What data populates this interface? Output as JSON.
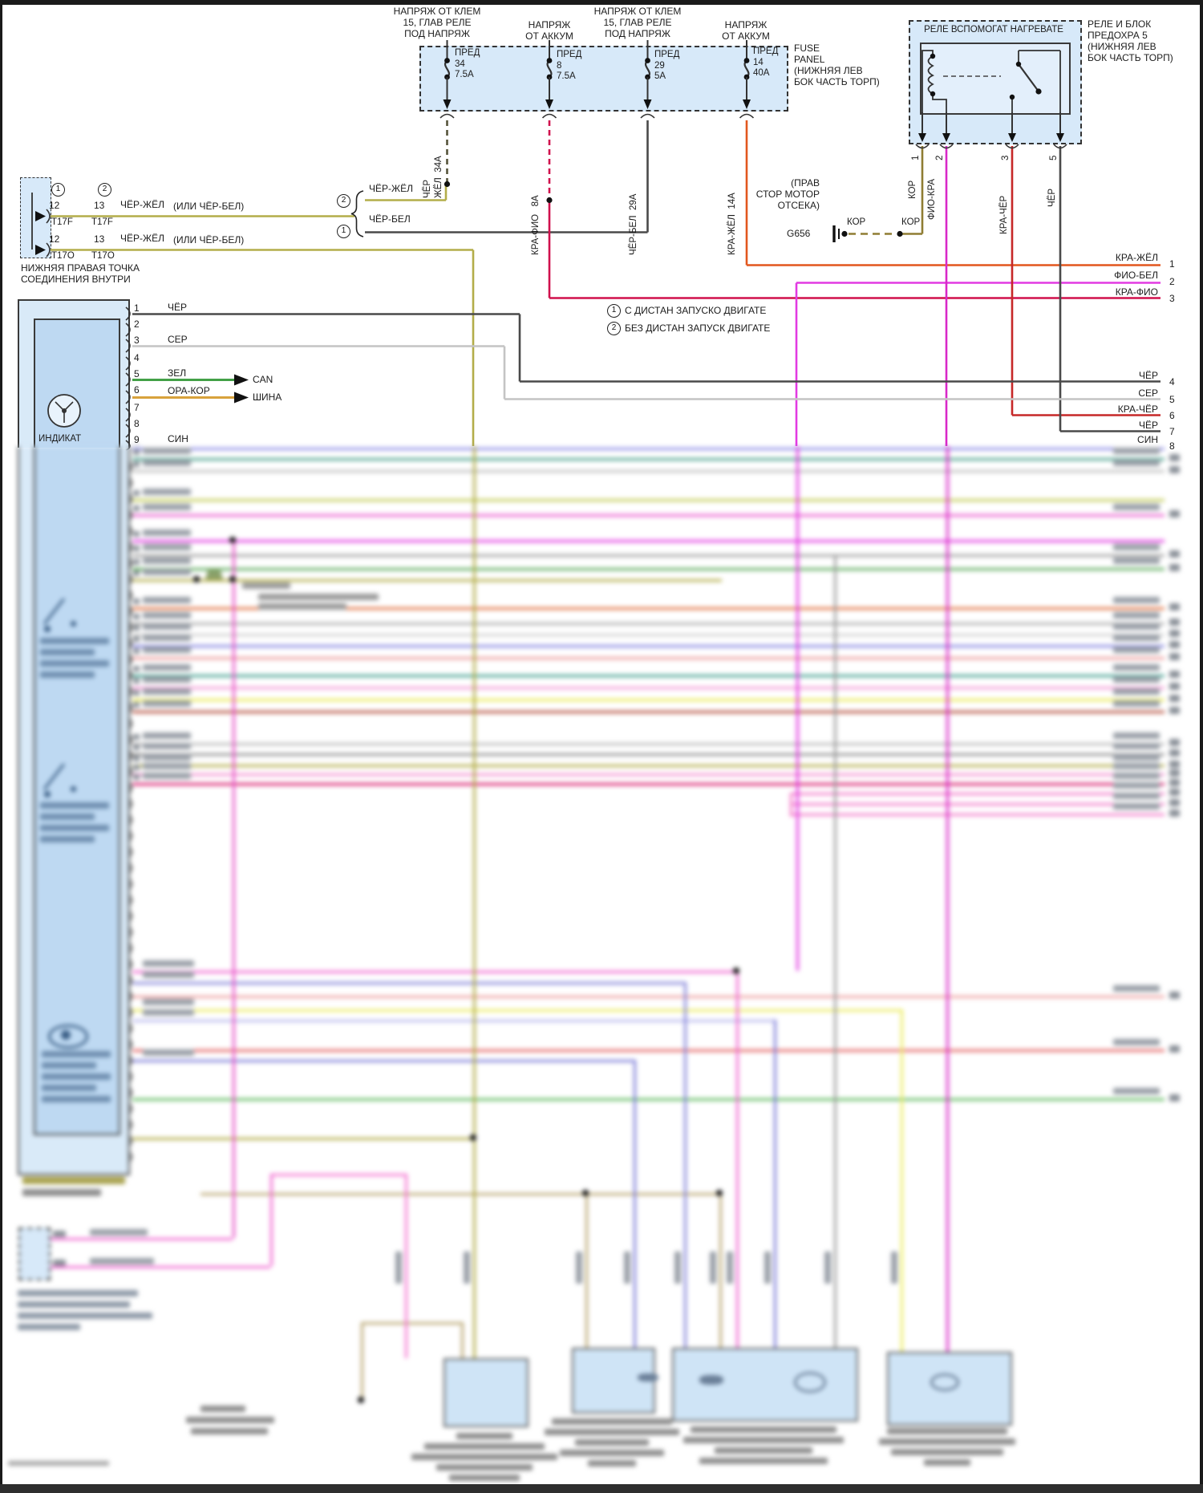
{
  "headers": {
    "h1": "НАПРЯЖ ОТ КЛЕМ\n15, ГЛАВ РЕЛЕ\nПОД НАПРЯЖ",
    "h2": "НАПРЯЖ\nОТ АККУМ",
    "h3": "НАПРЯЖ ОТ КЛЕМ\n15, ГЛАВ РЕЛЕ\nПОД НАПРЯЖ",
    "h4": "НАПРЯЖ\nОТ АККУМ"
  },
  "fuse_panel": {
    "label": "FUSE\nPANEL\n(НИЖНЯЯ ЛЕВ\nБОК ЧАСТЬ ТОРП)",
    "fuses": [
      {
        "text": "ПРЕД\n34\n7.5A"
      },
      {
        "text": "ПРЕД\n8\n7.5A"
      },
      {
        "text": "ПРЕД\n29\n5A"
      },
      {
        "text": "ПРЕД\n14\n40A"
      }
    ]
  },
  "relay": {
    "title": "РЕЛЕ ВСПОМОГАТ НАГРЕВАТЕ",
    "side_label": "РЕЛЕ И БЛОК\nПРЕДОХРА 5\n(НИЖНЯЯ ЛЕВ\nБОК ЧАСТЬ ТОРП)",
    "pins": [
      "1",
      "2",
      "3",
      "5"
    ],
    "pin_wires": [
      "КОР",
      "ФИО-КРА",
      "КРА-ЧЁР",
      "ЧЁР"
    ]
  },
  "drops": {
    "f34": "ЧЁР\nЖЁЛ  34А",
    "f8": "КРА-ФИО   8А",
    "f29": "ЧЁР-БЕЛ  29А",
    "f14": "КРА-ЖЁЛ  14А"
  },
  "branch": {
    "brace": "{",
    "opt2_num": "2",
    "opt2_label": "ЧЁР-ЖЁЛ",
    "opt1_num": "1",
    "opt1_label": "ЧЁР-БЕЛ"
  },
  "connector": {
    "rows": [
      {
        "c1": "1",
        "c2": "2",
        "p1": "12",
        "p2": "13",
        "wire": "ЧЁР-ЖЁЛ",
        "alt": "(ИЛИ ЧЁР-БЕЛ)",
        "t1": "T17F",
        "t2": "T17F"
      },
      {
        "p1": "12",
        "p2": "13",
        "wire": "ЧЁР-ЖЁЛ",
        "alt": "(ИЛИ ЧЁР-БЕЛ)",
        "t1": "T17O",
        "t2": "T17O"
      }
    ],
    "caption": "НИЖНЯЯ ПРАВАЯ ТОЧКА\nСОЕДИНЕНИЯ ВНУТРИ"
  },
  "ground": {
    "id": "G656",
    "wire1": "КОР",
    "wire2": "КОР",
    "note": "(ПРАВ\nСТОР МОТОР\nОТСЕКА)"
  },
  "notes": [
    {
      "num": "1",
      "text": "С ДИСТАН ЗАПУСКО ДВИГАТЕ"
    },
    {
      "num": "2",
      "text": "БЕЗ ДИСТАН ЗАПУСК ДВИГАТЕ"
    }
  ],
  "module": {
    "pins": [
      "1",
      "2",
      "3",
      "4",
      "5",
      "6",
      "7",
      "8",
      "9"
    ],
    "wires": {
      "1": "ЧЁР",
      "3": "СЕР",
      "5": "ЗЕЛ",
      "6": "ОРА-КОР",
      "9": "СИН"
    },
    "bus1": "CAN",
    "bus2": "ШИНА",
    "partial_label": "ИНДИКАТ"
  },
  "right_pins": [
    {
      "wire": "КРА-ЖЁЛ",
      "num": "1"
    },
    {
      "wire": "ФИО-БЕЛ",
      "num": "2"
    },
    {
      "wire": "КРА-ФИО",
      "num": "3"
    },
    {
      "wire": "ЧЁР",
      "num": "4"
    },
    {
      "wire": "СЕР",
      "num": "5"
    },
    {
      "wire": "КРА-ЧЁР",
      "num": "6"
    },
    {
      "wire": "ЧЁР",
      "num": "7"
    },
    {
      "wire": "СИН",
      "num": "8"
    }
  ],
  "colors": {
    "panel_fill": "#d7e9f9",
    "chyor": "#4a4a4a",
    "ser": "#c4c4c4",
    "zel": "#43a047",
    "ora_kor": "#d8a23c",
    "sin": "#8c8ce6",
    "kra_fio": "#d0104c",
    "fio_bel": "#e23ae2",
    "fio_kra": "#d828c8",
    "kra_chyor": "#c62828",
    "kra_zhyol": "#e2571e",
    "chyor_zhyol_opt": "#b3ad4a",
    "kor": "#8f7d33"
  }
}
